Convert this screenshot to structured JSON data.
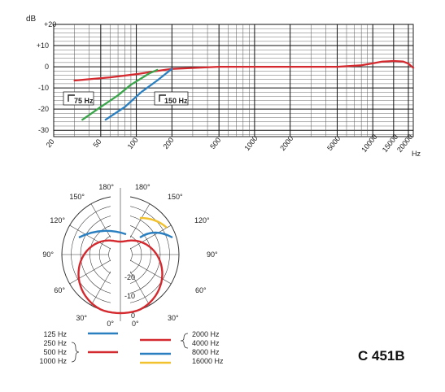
{
  "chart_data": [
    {
      "type": "line",
      "scale": "log-x",
      "xlabel": "Hz",
      "ylabel": "dB",
      "x_tick_labels": [
        "20",
        "50",
        "100",
        "200",
        "500",
        "1000",
        "2000",
        "5000",
        "10000",
        "15000",
        "20000"
      ],
      "y_tick_labels": [
        "+20",
        "+10",
        "0",
        "-10",
        "-20",
        "-30"
      ],
      "xlim": [
        20,
        22000
      ],
      "ylim": [
        -33,
        20
      ],
      "grid": true,
      "annotations": [
        "75 Hz",
        "150 Hz"
      ],
      "series": [
        {
          "color": "#d42a2f",
          "x": [
            30,
            60,
            100,
            150,
            200,
            500,
            1000,
            2000,
            5000,
            8000,
            10000,
            12000,
            15000,
            18000,
            20000,
            22000
          ],
          "y": [
            -6.5,
            -5,
            -3.5,
            -2,
            -1,
            0,
            0,
            0,
            0,
            0.7,
            1.6,
            2.4,
            2.7,
            2.5,
            1.5,
            -0.5
          ]
        },
        {
          "color": "#3aa54a",
          "x": [
            35,
            50,
            70,
            90,
            110,
            130,
            150
          ],
          "y": [
            -25,
            -19,
            -13.5,
            -8.5,
            -5.5,
            -3,
            -1.5
          ]
        },
        {
          "color": "#2a7fc0",
          "x": [
            55,
            80,
            110,
            150,
            180,
            200
          ],
          "y": [
            -25,
            -19,
            -12,
            -6.5,
            -3,
            -1
          ]
        }
      ]
    },
    {
      "type": "polar",
      "angle_labels": [
        "180°",
        "150°",
        "120°",
        "90°",
        "60°",
        "30°",
        "0°"
      ],
      "radial_labels": [
        "0",
        "-10",
        "-20"
      ],
      "left_legend": [
        {
          "label": "125 Hz",
          "color": "#2a7fc0"
        },
        {
          "label": "250 Hz",
          "color": "#d42a2f"
        },
        {
          "label": "500 Hz",
          "color": "#d42a2f"
        },
        {
          "label": "1000 Hz",
          "color": "#d42a2f"
        }
      ],
      "right_legend": [
        {
          "label": "2000 Hz",
          "color": "#d42a2f"
        },
        {
          "label": "4000 Hz",
          "color": "#d42a2f"
        },
        {
          "label": "8000 Hz",
          "color": "#2a7fc0"
        },
        {
          "label": "16000 Hz",
          "color": "#f2c12e"
        }
      ]
    }
  ],
  "model_name": "C 451B"
}
